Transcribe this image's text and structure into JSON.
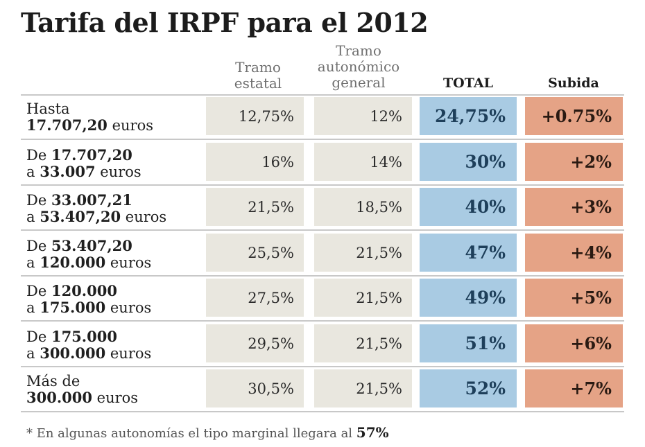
{
  "title": "Tarifa del IRPF para el 2012",
  "columns": {
    "estatal": [
      "Tramo",
      "estatal"
    ],
    "autonomico": [
      "Tramo",
      "autonómico",
      "general"
    ],
    "total": "TOTAL",
    "subida": "Subida"
  },
  "rows": [
    {
      "pre": "Hasta",
      "line2_num": "17.707,20",
      "line2_suffix": " euros",
      "estatal": "12,75%",
      "autonomico": "12%",
      "total": "24,75%",
      "subida": "+0.75%"
    },
    {
      "pre": "De ",
      "from": "17.707,20",
      "line2_pre": "a ",
      "to": "33.007",
      "line2_suffix": " euros",
      "estatal": "16%",
      "autonomico": "14%",
      "total": "30%",
      "subida": "+2%"
    },
    {
      "pre": "De ",
      "from": "33.007,21",
      "line2_pre": "a ",
      "to": "53.407,20",
      "line2_suffix": " euros",
      "estatal": "21,5%",
      "autonomico": "18,5%",
      "total": "40%",
      "subida": "+3%"
    },
    {
      "pre": "De ",
      "from": "53.407,20",
      "line2_pre": "a ",
      "to": "120.000",
      "line2_suffix": " euros",
      "estatal": "25,5%",
      "autonomico": "21,5%",
      "total": "47%",
      "subida": "+4%"
    },
    {
      "pre": "De ",
      "from": "120.000",
      "line2_pre": "a ",
      "to": "175.000",
      "line2_suffix": " euros",
      "estatal": "27,5%",
      "autonomico": "21,5%",
      "total": "49%",
      "subida": "+5%"
    },
    {
      "pre": "De ",
      "from": "175.000",
      "line2_pre": "a ",
      "to": "300.000",
      "line2_suffix": " euros",
      "estatal": "29,5%",
      "autonomico": "21,5%",
      "total": "51%",
      "subida": "+6%"
    },
    {
      "pre": "Más de",
      "line2_num": "300.000",
      "line2_suffix": " euros",
      "estatal": "30,5%",
      "autonomico": "21,5%",
      "total": "52%",
      "subida": "+7%"
    }
  ],
  "footnote": {
    "text": "* En algunas autonomías el tipo marginal llegara al ",
    "value": "57%"
  },
  "chart_data": {
    "type": "table",
    "title": "Tarifa del IRPF para el 2012",
    "columns": [
      "Tramo estatal",
      "Tramo autonómico general",
      "TOTAL",
      "Subida"
    ],
    "row_labels": [
      "Hasta 17.707,20 euros",
      "De 17.707,20 a 33.007 euros",
      "De 33.007,21 a 53.407,20 euros",
      "De 53.407,20 a 120.000 euros",
      "De 120.000 a 175.000 euros",
      "De 175.000 a 300.000 euros",
      "Más de 300.000 euros"
    ],
    "values": [
      [
        "12,75%",
        "12%",
        "24,75%",
        "+0.75%"
      ],
      [
        "16%",
        "14%",
        "30%",
        "+2%"
      ],
      [
        "21,5%",
        "18,5%",
        "40%",
        "+3%"
      ],
      [
        "25,5%",
        "21,5%",
        "47%",
        "+4%"
      ],
      [
        "27,5%",
        "21,5%",
        "49%",
        "+5%"
      ],
      [
        "29,5%",
        "21,5%",
        "51%",
        "+6%"
      ],
      [
        "30,5%",
        "21,5%",
        "52%",
        "+7%"
      ]
    ],
    "colors": {
      "estatal": "#e9e7df",
      "autonomico": "#e9e7df",
      "total": "#a9cbe3",
      "subida": "#e5a386"
    }
  }
}
